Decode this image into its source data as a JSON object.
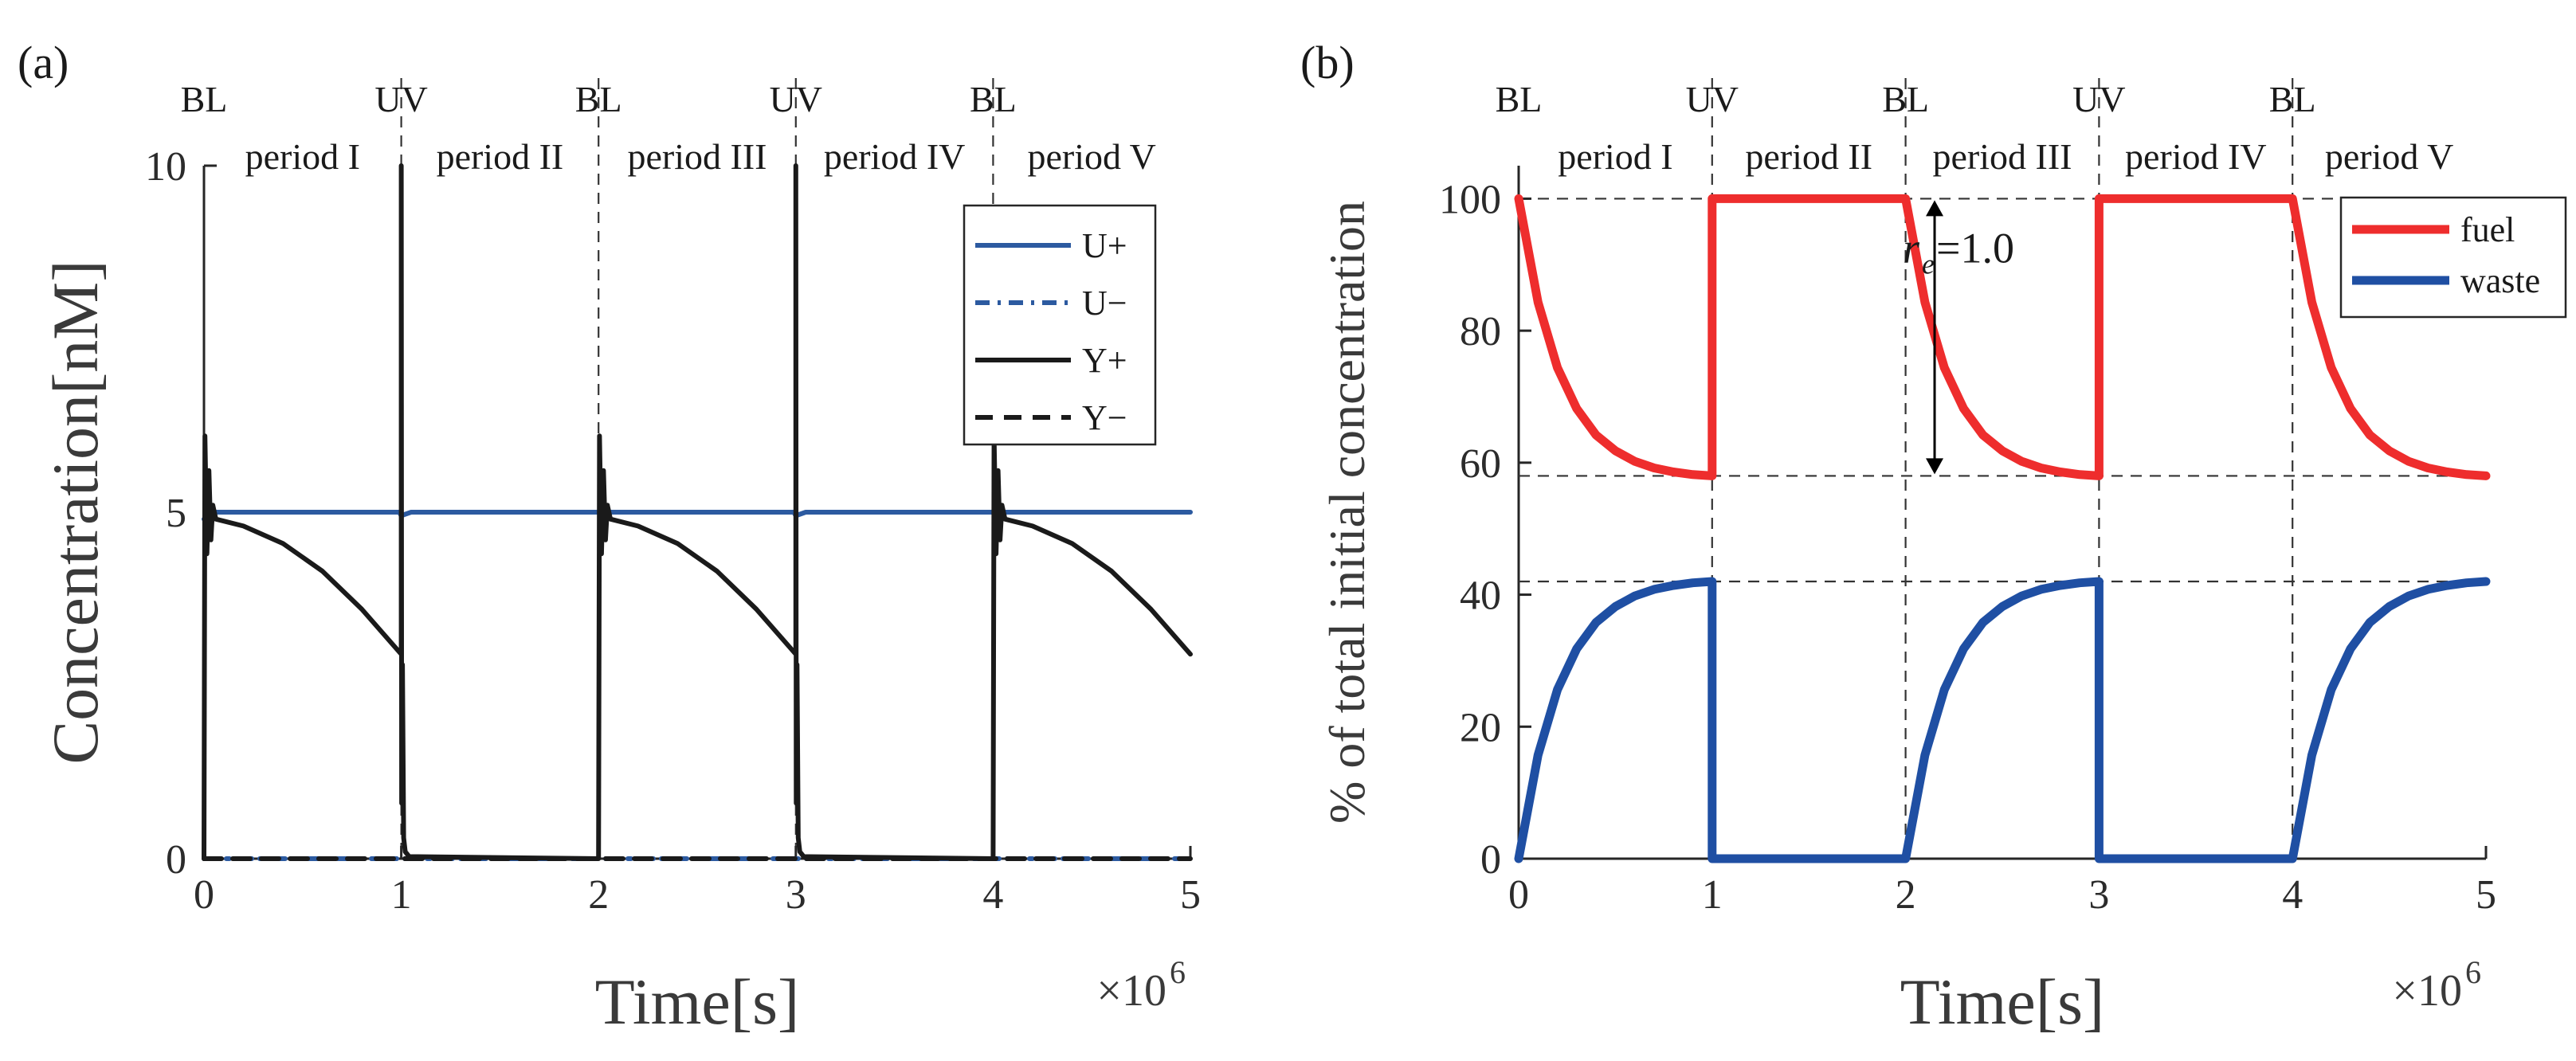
{
  "chart_data": [
    {
      "panel": "(a)",
      "type": "line",
      "xlabel": "Time[s]",
      "ylabel": "Concentration[nM]",
      "x_multiplier": "×10",
      "x_multiplier_exp": "6",
      "xlim": [
        0,
        5
      ],
      "ylim": [
        0,
        10
      ],
      "xticks": [
        "0",
        "1",
        "2",
        "3",
        "4",
        "5"
      ],
      "yticks": [
        "0",
        "5",
        "10"
      ],
      "phase_labels": [
        {
          "x": 0,
          "text": "BL"
        },
        {
          "x": 1,
          "text": "UV"
        },
        {
          "x": 2,
          "text": "BL"
        },
        {
          "x": 3,
          "text": "UV"
        },
        {
          "x": 4,
          "text": "BL"
        }
      ],
      "period_labels": [
        {
          "x": 0.5,
          "text": "period I"
        },
        {
          "x": 1.5,
          "text": "period II"
        },
        {
          "x": 2.5,
          "text": "period III"
        },
        {
          "x": 3.5,
          "text": "period IV"
        },
        {
          "x": 4.5,
          "text": "period V"
        }
      ],
      "dashed_vlines": [
        1,
        2,
        3,
        4
      ],
      "legend": [
        "U+",
        "U−",
        "Y+",
        "Y−"
      ],
      "series": [
        {
          "name": "U+",
          "color": "#2c5aa0",
          "style": "solid",
          "x": [
            0,
            0.02,
            0.04,
            0.99,
            1.0,
            1.01,
            1.05,
            2.0,
            2.02,
            2.04,
            2.99,
            3.0,
            3.01,
            3.05,
            4.0,
            4.02,
            4.04,
            5.0
          ],
          "y": [
            4.9,
            4.95,
            5.0,
            5.0,
            4.95,
            4.96,
            5.0,
            5.0,
            4.95,
            5.0,
            5.0,
            4.95,
            4.96,
            5.0,
            5.0,
            4.95,
            5.0,
            5.0
          ]
        },
        {
          "name": "U−",
          "color": "#2c5aa0",
          "style": "dashdot",
          "x": [
            0,
            5
          ],
          "y": [
            0,
            0
          ]
        },
        {
          "name": "Y+",
          "color": "#1a1a1a",
          "style": "solid",
          "x": [
            0,
            0.005,
            0.015,
            0.025,
            0.035,
            0.045,
            0.06,
            0.2,
            0.4,
            0.6,
            0.8,
            1.0,
            1.0,
            1.002,
            1.006,
            1.012,
            1.02,
            1.04,
            2.0,
            2.005,
            2.015,
            2.025,
            2.035,
            2.045,
            2.06,
            2.2,
            2.4,
            2.6,
            2.8,
            3.0,
            3.0,
            3.002,
            3.006,
            3.012,
            3.02,
            3.04,
            4.0,
            4.005,
            4.015,
            4.025,
            4.035,
            4.045,
            4.06,
            4.2,
            4.4,
            4.6,
            4.8,
            5.0
          ],
          "y": [
            0,
            6.1,
            4.4,
            5.6,
            4.6,
            5.1,
            4.9,
            4.8,
            4.55,
            4.15,
            3.6,
            2.95,
            10.0,
            0.8,
            2.8,
            0.3,
            0.1,
            0.03,
            0,
            6.1,
            4.4,
            5.6,
            4.6,
            5.1,
            4.9,
            4.8,
            4.55,
            4.15,
            3.6,
            2.95,
            10.0,
            0.8,
            2.8,
            0.3,
            0.1,
            0.03,
            0,
            6.1,
            4.4,
            5.6,
            4.6,
            5.1,
            4.9,
            4.8,
            4.55,
            4.15,
            3.6,
            2.95
          ]
        },
        {
          "name": "Y−",
          "color": "#1a1a1a",
          "style": "dashed",
          "x": [
            0,
            5
          ],
          "y": [
            0,
            0
          ]
        }
      ]
    },
    {
      "panel": "(b)",
      "type": "line",
      "xlabel": "Time[s]",
      "ylabel": "% of total initial concentration",
      "x_multiplier": "×10",
      "x_multiplier_exp": "6",
      "xlim": [
        0,
        5
      ],
      "ylim": [
        0,
        105
      ],
      "xticks": [
        "0",
        "1",
        "2",
        "3",
        "4",
        "5"
      ],
      "yticks": [
        "0",
        "20",
        "40",
        "60",
        "80",
        "100"
      ],
      "phase_labels": [
        {
          "x": 0,
          "text": "BL"
        },
        {
          "x": 1,
          "text": "UV"
        },
        {
          "x": 2,
          "text": "BL"
        },
        {
          "x": 3,
          "text": "UV"
        },
        {
          "x": 4,
          "text": "BL"
        }
      ],
      "period_labels": [
        {
          "x": 0.5,
          "text": "period I"
        },
        {
          "x": 1.5,
          "text": "period II"
        },
        {
          "x": 2.5,
          "text": "period III"
        },
        {
          "x": 3.5,
          "text": "period IV"
        },
        {
          "x": 4.5,
          "text": "period V"
        }
      ],
      "dashed_vlines": [
        1,
        2,
        3,
        4
      ],
      "dashed_hlines": [
        100,
        58,
        42
      ],
      "annotation": {
        "text": "=1.0",
        "symbol": "r",
        "subscript": "e",
        "x": 2.15,
        "y_from": 100,
        "y_to": 58
      },
      "legend": [
        "fuel",
        "waste"
      ],
      "series": [
        {
          "name": "fuel",
          "color": "#ee2d2d",
          "x": [
            0,
            0.1,
            0.2,
            0.3,
            0.4,
            0.5,
            0.6,
            0.7,
            0.8,
            0.9,
            1.0,
            1.0,
            2.0,
            2.1,
            2.2,
            2.3,
            2.4,
            2.5,
            2.6,
            2.7,
            2.8,
            2.9,
            3.0,
            3.0,
            4.0,
            4.1,
            4.2,
            4.3,
            4.4,
            4.5,
            4.6,
            4.7,
            4.8,
            4.9,
            5.0
          ],
          "y": [
            100,
            84.3,
            74.4,
            68.2,
            64.2,
            61.8,
            60.2,
            59.2,
            58.6,
            58.2,
            58,
            100,
            100,
            84.3,
            74.4,
            68.2,
            64.2,
            61.8,
            60.2,
            59.2,
            58.6,
            58.2,
            58,
            100,
            100,
            84.3,
            74.4,
            68.2,
            64.2,
            61.8,
            60.2,
            59.2,
            58.6,
            58.2,
            58
          ]
        },
        {
          "name": "waste",
          "color": "#1f4fa3",
          "x": [
            0,
            0.1,
            0.2,
            0.3,
            0.4,
            0.5,
            0.6,
            0.7,
            0.8,
            0.9,
            1.0,
            1.0,
            2.0,
            2.1,
            2.2,
            2.3,
            2.4,
            2.5,
            2.6,
            2.7,
            2.8,
            2.9,
            3.0,
            3.0,
            4.0,
            4.1,
            4.2,
            4.3,
            4.4,
            4.5,
            4.6,
            4.7,
            4.8,
            4.9,
            5.0
          ],
          "y": [
            0,
            15.7,
            25.6,
            31.8,
            35.8,
            38.2,
            39.8,
            40.8,
            41.4,
            41.8,
            42,
            0,
            0,
            15.7,
            25.6,
            31.8,
            35.8,
            38.2,
            39.8,
            40.8,
            41.4,
            41.8,
            42,
            0,
            0,
            15.7,
            25.6,
            31.8,
            35.8,
            38.2,
            39.8,
            40.8,
            41.4,
            41.8,
            42
          ]
        }
      ]
    }
  ]
}
